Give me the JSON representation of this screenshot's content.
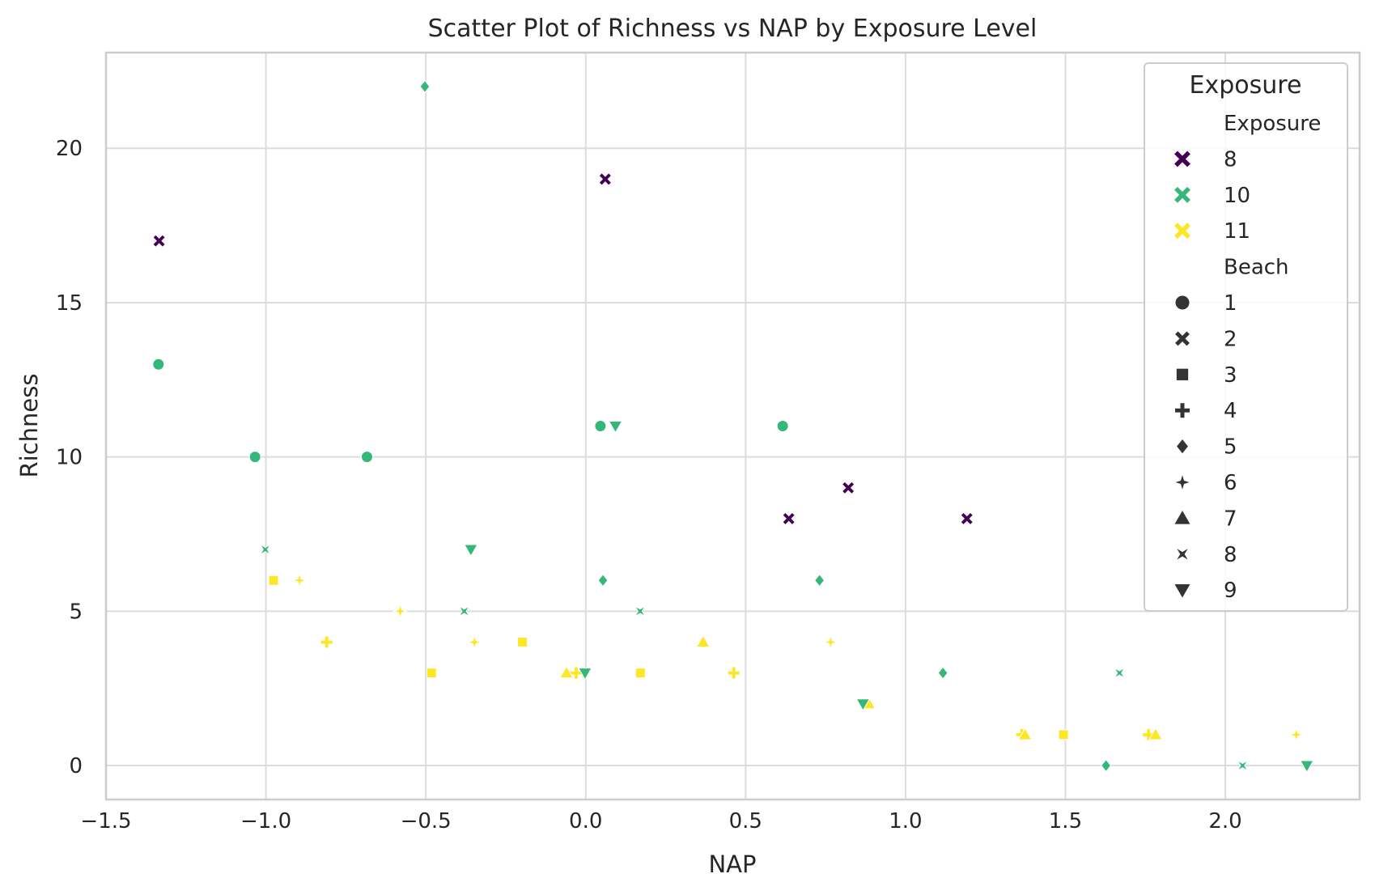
{
  "chart_data": {
    "type": "scatter",
    "title": "Scatter Plot of Richness vs NAP by Exposure Level",
    "xlabel": "NAP",
    "ylabel": "Richness",
    "xlim": [
      -1.5,
      2.42
    ],
    "ylim": [
      -1.1,
      23.1
    ],
    "x_ticks": [
      -1.5,
      -1.0,
      -0.5,
      0.0,
      0.5,
      1.0,
      1.5,
      2.0
    ],
    "x_tick_labels": [
      "−1.5",
      "−1.0",
      "−0.5",
      "0.0",
      "0.5",
      "1.0",
      "1.5",
      "2.0"
    ],
    "y_ticks": [
      0,
      5,
      10,
      15,
      20
    ],
    "y_tick_labels": [
      "0",
      "5",
      "10",
      "15",
      "20"
    ],
    "grid": true,
    "legend": {
      "title": "Exposure",
      "placement": "top-right",
      "hue_title": "Exposure",
      "hue_entries": [
        {
          "label": "8",
          "color": "#440154"
        },
        {
          "label": "10",
          "color": "#35b779"
        },
        {
          "label": "11",
          "color": "#fde725"
        }
      ],
      "style_title": "Beach",
      "style_entries": [
        {
          "label": "1",
          "marker": "circle"
        },
        {
          "label": "2",
          "marker": "x"
        },
        {
          "label": "3",
          "marker": "square"
        },
        {
          "label": "4",
          "marker": "plus"
        },
        {
          "label": "5",
          "marker": "diamond"
        },
        {
          "label": "6",
          "marker": "star"
        },
        {
          "label": "7",
          "marker": "triangle-up"
        },
        {
          "label": "8",
          "marker": "bowtie"
        },
        {
          "label": "9",
          "marker": "triangle-down"
        }
      ]
    },
    "points": [
      {
        "x": -1.336,
        "y": 13,
        "exposure": "10",
        "beach": "1"
      },
      {
        "x": -1.034,
        "y": 10,
        "exposure": "10",
        "beach": "1"
      },
      {
        "x": -0.684,
        "y": 10,
        "exposure": "10",
        "beach": "1"
      },
      {
        "x": 0.046,
        "y": 11,
        "exposure": "10",
        "beach": "1"
      },
      {
        "x": 0.616,
        "y": 11,
        "exposure": "10",
        "beach": "1"
      },
      {
        "x": -1.334,
        "y": 17,
        "exposure": "8",
        "beach": "2"
      },
      {
        "x": 0.061,
        "y": 19,
        "exposure": "8",
        "beach": "2"
      },
      {
        "x": 0.635,
        "y": 8,
        "exposure": "8",
        "beach": "2"
      },
      {
        "x": 0.821,
        "y": 9,
        "exposure": "8",
        "beach": "2"
      },
      {
        "x": 1.192,
        "y": 8,
        "exposure": "8",
        "beach": "2"
      },
      {
        "x": -0.976,
        "y": 6,
        "exposure": "11",
        "beach": "3"
      },
      {
        "x": -0.482,
        "y": 3,
        "exposure": "11",
        "beach": "3"
      },
      {
        "x": -0.198,
        "y": 4,
        "exposure": "11",
        "beach": "3"
      },
      {
        "x": 0.171,
        "y": 3,
        "exposure": "11",
        "beach": "3"
      },
      {
        "x": 1.494,
        "y": 1,
        "exposure": "11",
        "beach": "3"
      },
      {
        "x": -0.81,
        "y": 4,
        "exposure": "11",
        "beach": "4"
      },
      {
        "x": -0.03,
        "y": 3,
        "exposure": "11",
        "beach": "4"
      },
      {
        "x": 0.463,
        "y": 3,
        "exposure": "11",
        "beach": "4"
      },
      {
        "x": 1.364,
        "y": 1,
        "exposure": "11",
        "beach": "4"
      },
      {
        "x": 1.76,
        "y": 1,
        "exposure": "11",
        "beach": "4"
      },
      {
        "x": -0.503,
        "y": 22,
        "exposure": "10",
        "beach": "5"
      },
      {
        "x": 0.054,
        "y": 6,
        "exposure": "10",
        "beach": "5"
      },
      {
        "x": 0.731,
        "y": 6,
        "exposure": "10",
        "beach": "5"
      },
      {
        "x": 1.117,
        "y": 3,
        "exposure": "10",
        "beach": "5"
      },
      {
        "x": 1.627,
        "y": 0,
        "exposure": "10",
        "beach": "5"
      },
      {
        "x": -0.895,
        "y": 6,
        "exposure": "11",
        "beach": "6"
      },
      {
        "x": -0.58,
        "y": 5,
        "exposure": "11",
        "beach": "6"
      },
      {
        "x": -0.348,
        "y": 4,
        "exposure": "11",
        "beach": "6"
      },
      {
        "x": 0.766,
        "y": 4,
        "exposure": "11",
        "beach": "6"
      },
      {
        "x": 2.222,
        "y": 1,
        "exposure": "11",
        "beach": "6"
      },
      {
        "x": -0.06,
        "y": 3,
        "exposure": "11",
        "beach": "7"
      },
      {
        "x": 0.367,
        "y": 4,
        "exposure": "11",
        "beach": "7"
      },
      {
        "x": 0.885,
        "y": 2,
        "exposure": "11",
        "beach": "7"
      },
      {
        "x": 1.374,
        "y": 1,
        "exposure": "11",
        "beach": "7"
      },
      {
        "x": 1.782,
        "y": 1,
        "exposure": "11",
        "beach": "7"
      },
      {
        "x": -1.002,
        "y": 7,
        "exposure": "10",
        "beach": "8"
      },
      {
        "x": -0.38,
        "y": 5,
        "exposure": "10",
        "beach": "8"
      },
      {
        "x": 0.17,
        "y": 5,
        "exposure": "10",
        "beach": "8"
      },
      {
        "x": 1.669,
        "y": 3,
        "exposure": "10",
        "beach": "8"
      },
      {
        "x": 2.054,
        "y": 0,
        "exposure": "10",
        "beach": "8"
      },
      {
        "x": -0.359,
        "y": 7,
        "exposure": "10",
        "beach": "9"
      },
      {
        "x": 0.093,
        "y": 11,
        "exposure": "10",
        "beach": "9"
      },
      {
        "x": -0.002,
        "y": 3,
        "exposure": "10",
        "beach": "9"
      },
      {
        "x": 0.867,
        "y": 2,
        "exposure": "10",
        "beach": "9"
      },
      {
        "x": 2.255,
        "y": 0,
        "exposure": "10",
        "beach": "9"
      }
    ]
  }
}
